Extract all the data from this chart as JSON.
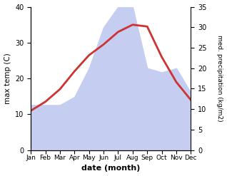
{
  "months": [
    "Jan",
    "Feb",
    "Mar",
    "Apr",
    "May",
    "Jun",
    "Jul",
    "Aug",
    "Sep",
    "Oct",
    "Nov",
    "Dec"
  ],
  "month_x": [
    1,
    2,
    3,
    4,
    5,
    6,
    7,
    8,
    9,
    10,
    11,
    12
  ],
  "temperature": [
    11.0,
    13.5,
    17.0,
    22.0,
    26.5,
    29.5,
    33.0,
    35.0,
    34.5,
    26.0,
    19.0,
    14.0
  ],
  "precipitation": [
    11,
    11,
    11,
    13,
    20,
    30,
    35,
    35,
    20,
    19,
    20,
    14
  ],
  "temp_color": "#cc3333",
  "precip_fill_color": "#c5cef0",
  "temp_ylim": [
    0,
    40
  ],
  "precip_ylim": [
    0,
    35
  ],
  "temp_yticks": [
    0,
    10,
    20,
    30,
    40
  ],
  "precip_yticks": [
    0,
    5,
    10,
    15,
    20,
    25,
    30,
    35
  ],
  "xlabel": "date (month)",
  "ylabel_left": "max temp (C)",
  "ylabel_right": "med. precipitation (kg/m2)",
  "bg_color": "#ffffff",
  "line_width": 2.0,
  "temp_scale_factor": 1.142857
}
